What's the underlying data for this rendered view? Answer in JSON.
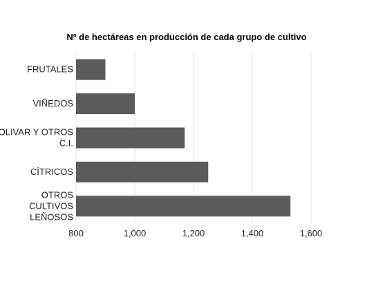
{
  "chart_data": {
    "type": "bar",
    "orientation": "horizontal",
    "title": "Nº de hectáreas en producción de cada grupo de cultivo",
    "xlabel": "",
    "ylabel": "",
    "categories": [
      [
        "FRUTALES"
      ],
      [
        "VIÑEDOS"
      ],
      [
        "OLIVAR Y OTROS",
        "C.I."
      ],
      [
        "CÍTRICOS"
      ],
      [
        "OTROS",
        "CULTIVOS",
        "LEÑOSOS"
      ]
    ],
    "values": [
      900,
      1000,
      1170,
      1250,
      1530
    ],
    "xlim": [
      800,
      1600
    ],
    "xticks": [
      800,
      1000,
      1200,
      1400,
      1600
    ],
    "xtick_labels": [
      "800",
      "1,000",
      "1,200",
      "1,400",
      "1,600"
    ],
    "grid": "vertical",
    "legend": "none",
    "bar_color": "#5b5b5b"
  }
}
